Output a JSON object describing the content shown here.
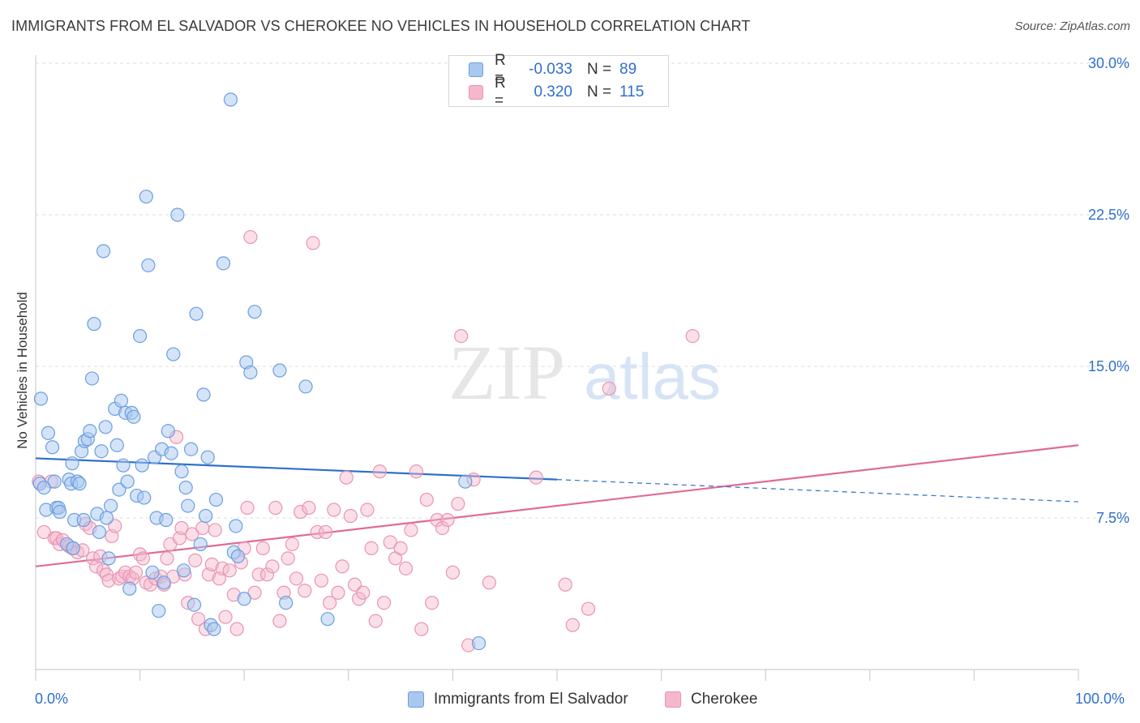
{
  "title": "IMMIGRANTS FROM EL SALVADOR VS CHEROKEE NO VEHICLES IN HOUSEHOLD CORRELATION CHART",
  "source": "Source: ZipAtlas.com",
  "watermark": {
    "zip": "ZIP",
    "atlas": "atlas"
  },
  "legend_top": [
    {
      "r_label": "R =",
      "r_value": "-0.033",
      "n_label": "N =",
      "n_value": "89"
    },
    {
      "r_label": "R =",
      "r_value": "0.320",
      "n_label": "N =",
      "n_value": "115"
    }
  ],
  "colors": {
    "blue_fill": "#a9c8f0",
    "blue_stroke": "#6a9fe0",
    "blue_line": "#2f6fcc",
    "pink_fill": "#f5b8cb",
    "pink_stroke": "#e994b0",
    "pink_line": "#e06b95",
    "tick_text": "#2f6fcc",
    "grid": "#dcdcdc"
  },
  "chart_data": {
    "type": "scatter",
    "title": "IMMIGRANTS FROM EL SALVADOR VS CHEROKEE NO VEHICLES IN HOUSEHOLD CORRELATION CHART",
    "xlabel": "",
    "ylabel": "No Vehicles in Household",
    "xlim": [
      0,
      100
    ],
    "ylim": [
      0,
      30
    ],
    "x_tick_labels": [
      "0.0%",
      "100.0%"
    ],
    "y_ticks": [
      7.5,
      15.0,
      22.5,
      30.0
    ],
    "y_tick_labels": [
      "7.5%",
      "15.0%",
      "22.5%",
      "30.0%"
    ],
    "grid": true,
    "legend_placement": "bottom",
    "series": [
      {
        "name": "Immigrants from El Salvador",
        "r": -0.033,
        "n": 89,
        "trend": {
          "x": [
            0,
            50,
            100
          ],
          "y": [
            10.45,
            9.4,
            8.3
          ],
          "solid_until": 50
        },
        "points": [
          [
            0.4,
            9.2
          ],
          [
            0.5,
            13.4
          ],
          [
            0.8,
            9.0
          ],
          [
            1.0,
            7.9
          ],
          [
            1.2,
            11.7
          ],
          [
            1.6,
            11.0
          ],
          [
            1.8,
            9.3
          ],
          [
            2.0,
            8.0
          ],
          [
            2.2,
            8.0
          ],
          [
            2.3,
            7.8
          ],
          [
            3.0,
            6.2
          ],
          [
            3.2,
            9.4
          ],
          [
            3.4,
            9.2
          ],
          [
            3.5,
            10.2
          ],
          [
            3.7,
            7.4
          ],
          [
            4.0,
            9.3
          ],
          [
            4.2,
            9.2
          ],
          [
            4.4,
            10.8
          ],
          [
            4.6,
            7.4
          ],
          [
            4.7,
            11.3
          ],
          [
            5.0,
            11.4
          ],
          [
            5.2,
            11.8
          ],
          [
            5.4,
            14.4
          ],
          [
            5.6,
            17.1
          ],
          [
            5.9,
            7.7
          ],
          [
            6.1,
            6.8
          ],
          [
            6.3,
            10.8
          ],
          [
            6.5,
            20.7
          ],
          [
            6.7,
            12.0
          ],
          [
            6.8,
            7.5
          ],
          [
            7.0,
            5.5
          ],
          [
            7.2,
            8.1
          ],
          [
            7.6,
            12.9
          ],
          [
            7.8,
            11.1
          ],
          [
            8.0,
            8.9
          ],
          [
            8.2,
            13.3
          ],
          [
            8.4,
            10.1
          ],
          [
            8.6,
            12.7
          ],
          [
            8.8,
            9.3
          ],
          [
            9.0,
            4.0
          ],
          [
            9.2,
            12.7
          ],
          [
            9.4,
            12.5
          ],
          [
            9.7,
            8.6
          ],
          [
            10.0,
            16.5
          ],
          [
            10.2,
            10.1
          ],
          [
            10.4,
            8.5
          ],
          [
            10.6,
            23.4
          ],
          [
            10.8,
            20.0
          ],
          [
            11.2,
            4.8
          ],
          [
            11.4,
            10.5
          ],
          [
            11.6,
            7.5
          ],
          [
            11.8,
            2.9
          ],
          [
            12.1,
            10.9
          ],
          [
            12.3,
            4.3
          ],
          [
            12.5,
            7.4
          ],
          [
            12.7,
            11.8
          ],
          [
            13.0,
            10.7
          ],
          [
            13.2,
            15.6
          ],
          [
            13.6,
            22.5
          ],
          [
            14.0,
            9.8
          ],
          [
            14.2,
            4.9
          ],
          [
            14.4,
            9.0
          ],
          [
            14.6,
            8.1
          ],
          [
            14.9,
            10.9
          ],
          [
            15.2,
            3.2
          ],
          [
            15.4,
            17.6
          ],
          [
            15.8,
            6.2
          ],
          [
            16.1,
            13.6
          ],
          [
            16.3,
            7.6
          ],
          [
            16.5,
            10.5
          ],
          [
            16.8,
            2.2
          ],
          [
            17.1,
            2.0
          ],
          [
            17.3,
            8.4
          ],
          [
            18.0,
            20.1
          ],
          [
            18.7,
            28.2
          ],
          [
            19.0,
            5.8
          ],
          [
            19.2,
            7.1
          ],
          [
            19.4,
            5.6
          ],
          [
            20.0,
            3.5
          ],
          [
            20.2,
            15.2
          ],
          [
            20.6,
            14.7
          ],
          [
            21.0,
            17.7
          ],
          [
            23.4,
            14.8
          ],
          [
            24.0,
            3.3
          ],
          [
            25.9,
            14.0
          ],
          [
            28.0,
            2.5
          ],
          [
            42.5,
            1.3
          ],
          [
            41.2,
            9.3
          ],
          [
            3.6,
            6.0
          ]
        ]
      },
      {
        "name": "Cherokee",
        "r": 0.32,
        "n": 115,
        "trend": {
          "x": [
            0,
            100
          ],
          "y": [
            5.1,
            11.1
          ]
        },
        "points": [
          [
            0.3,
            9.3
          ],
          [
            0.8,
            6.8
          ],
          [
            1.5,
            9.3
          ],
          [
            1.8,
            6.5
          ],
          [
            2.0,
            6.5
          ],
          [
            2.3,
            6.2
          ],
          [
            2.6,
            6.4
          ],
          [
            3.2,
            6.1
          ],
          [
            3.5,
            6.0
          ],
          [
            4.0,
            5.8
          ],
          [
            4.5,
            5.9
          ],
          [
            4.8,
            7.2
          ],
          [
            5.2,
            7.0
          ],
          [
            5.5,
            5.5
          ],
          [
            5.8,
            5.1
          ],
          [
            6.2,
            5.6
          ],
          [
            6.5,
            4.9
          ],
          [
            6.8,
            4.7
          ],
          [
            7.0,
            4.4
          ],
          [
            7.3,
            6.6
          ],
          [
            7.6,
            7.1
          ],
          [
            8.0,
            4.5
          ],
          [
            8.3,
            4.6
          ],
          [
            8.6,
            4.8
          ],
          [
            9.0,
            4.6
          ],
          [
            9.3,
            4.5
          ],
          [
            9.6,
            4.8
          ],
          [
            10.0,
            5.7
          ],
          [
            10.3,
            5.5
          ],
          [
            10.6,
            4.3
          ],
          [
            11.0,
            4.2
          ],
          [
            11.5,
            4.5
          ],
          [
            12.0,
            4.6
          ],
          [
            12.3,
            4.2
          ],
          [
            12.6,
            5.5
          ],
          [
            12.9,
            6.2
          ],
          [
            13.2,
            4.6
          ],
          [
            13.5,
            11.5
          ],
          [
            13.8,
            6.5
          ],
          [
            14.0,
            7.0
          ],
          [
            14.3,
            4.7
          ],
          [
            14.6,
            3.3
          ],
          [
            15.0,
            6.7
          ],
          [
            15.3,
            5.4
          ],
          [
            15.6,
            2.5
          ],
          [
            16.0,
            7.0
          ],
          [
            16.3,
            2.0
          ],
          [
            16.6,
            4.7
          ],
          [
            16.9,
            5.2
          ],
          [
            17.2,
            6.9
          ],
          [
            17.6,
            4.5
          ],
          [
            17.9,
            5.0
          ],
          [
            18.2,
            2.6
          ],
          [
            18.6,
            4.9
          ],
          [
            19.0,
            3.7
          ],
          [
            19.3,
            2.0
          ],
          [
            19.7,
            5.3
          ],
          [
            20.0,
            6.0
          ],
          [
            20.3,
            8.0
          ],
          [
            20.6,
            21.4
          ],
          [
            21.0,
            3.8
          ],
          [
            21.4,
            4.7
          ],
          [
            21.8,
            6.0
          ],
          [
            22.2,
            4.7
          ],
          [
            22.7,
            5.1
          ],
          [
            23.0,
            8.0
          ],
          [
            23.4,
            2.4
          ],
          [
            23.8,
            3.8
          ],
          [
            24.2,
            5.5
          ],
          [
            24.6,
            6.2
          ],
          [
            25.0,
            4.5
          ],
          [
            25.4,
            7.8
          ],
          [
            25.8,
            3.9
          ],
          [
            26.2,
            8.0
          ],
          [
            26.6,
            21.1
          ],
          [
            27.0,
            6.8
          ],
          [
            27.4,
            4.4
          ],
          [
            27.8,
            6.8
          ],
          [
            28.2,
            3.3
          ],
          [
            28.6,
            7.9
          ],
          [
            29.0,
            3.8
          ],
          [
            29.4,
            5.1
          ],
          [
            29.8,
            9.5
          ],
          [
            30.2,
            7.6
          ],
          [
            30.6,
            4.2
          ],
          [
            31.0,
            3.5
          ],
          [
            31.4,
            3.8
          ],
          [
            31.8,
            7.9
          ],
          [
            32.2,
            6.0
          ],
          [
            32.6,
            2.4
          ],
          [
            33.0,
            9.8
          ],
          [
            33.4,
            3.3
          ],
          [
            34.0,
            6.3
          ],
          [
            34.5,
            5.5
          ],
          [
            35.0,
            6.0
          ],
          [
            35.5,
            5.0
          ],
          [
            36.0,
            6.9
          ],
          [
            36.5,
            9.8
          ],
          [
            37.0,
            2.0
          ],
          [
            37.5,
            8.4
          ],
          [
            38.0,
            3.3
          ],
          [
            38.5,
            7.4
          ],
          [
            39.0,
            7.0
          ],
          [
            39.5,
            7.4
          ],
          [
            40.0,
            4.8
          ],
          [
            40.5,
            8.2
          ],
          [
            40.8,
            16.5
          ],
          [
            41.5,
            1.2
          ],
          [
            42.0,
            9.4
          ],
          [
            43.5,
            4.3
          ],
          [
            48.0,
            9.5
          ],
          [
            50.8,
            4.2
          ],
          [
            51.5,
            2.2
          ],
          [
            53.0,
            3.0
          ],
          [
            55.0,
            13.9
          ],
          [
            63.0,
            16.5
          ]
        ]
      }
    ]
  }
}
